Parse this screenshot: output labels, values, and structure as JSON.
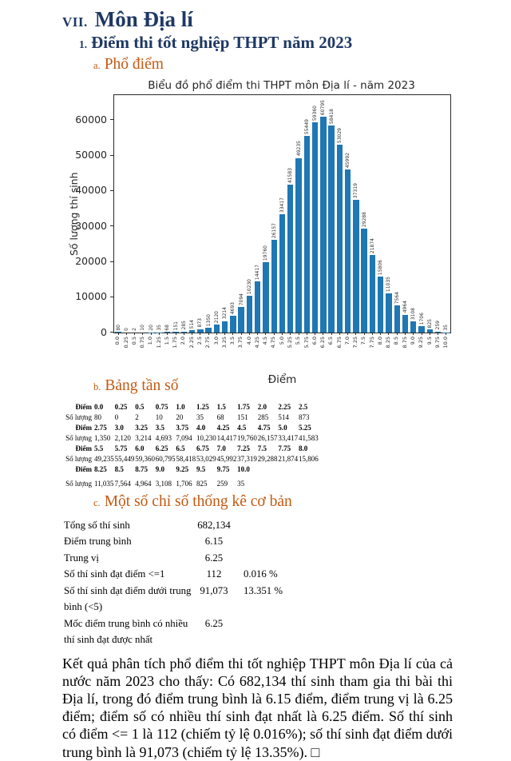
{
  "document": {
    "h1_num": "VII.",
    "h1": "Môn Địa lí",
    "h2_num": "1.",
    "h2": "Điểm thi tốt nghiệp THPT năm 2023",
    "sec_a_num": "a.",
    "sec_a": "Phổ điểm",
    "sec_b_num": "b.",
    "sec_b": "Bảng tần số",
    "sec_c_num": "c.",
    "sec_c": "Một số chỉ số thống kê cơ bản",
    "analysis": "Kết quả phân tích phổ điểm thi tốt nghiệp THPT môn Địa lí của cả nước năm 2023 cho thấy: Có 682,134 thí sinh tham gia thi bài thi Địa lí, trong đó điểm trung bình là 6.15 điểm, điểm trung vị là 6.25 điểm; điểm số có nhiều thí sinh đạt nhất là 6.25 điểm. Số thí sinh có điểm <= 1 là 112 (chiếm tỷ lệ 0.016%); số thí sinh đạt điểm dưới trung bình là 91,073 (chiếm tỷ lệ 13.35%). □"
  },
  "colors": {
    "heading_navy": "#1f3864",
    "section_orange": "#c45911",
    "bar_blue": "#1f77b4"
  },
  "chart_data": {
    "type": "bar",
    "title": "Biểu đồ phổ điểm thi THPT môn Địa lí - năm 2023",
    "xlabel": "Điểm",
    "ylabel": "Số lượng thí sinh",
    "categories": [
      "0.0",
      "0.25",
      "0.5",
      "0.75",
      "1.0",
      "1.25",
      "1.5",
      "1.75",
      "2.0",
      "2.25",
      "2.5",
      "2.75",
      "3.0",
      "3.25",
      "3.5",
      "3.75",
      "4.0",
      "4.25",
      "4.5",
      "4.75",
      "5.0",
      "5.25",
      "5.5",
      "5.75",
      "6.0",
      "6.25",
      "6.5",
      "6.75",
      "7.0",
      "7.25",
      "7.5",
      "7.75",
      "8.0",
      "8.25",
      "8.5",
      "8.75",
      "9.0",
      "9.25",
      "9.5",
      "9.75",
      "10.0"
    ],
    "values": [
      80,
      0,
      2,
      10,
      20,
      35,
      68,
      151,
      285,
      514,
      873,
      1350,
      2120,
      3214,
      4693,
      7094,
      10230,
      14417,
      19760,
      26157,
      33417,
      41583,
      49235,
      55449,
      59360,
      60795,
      58418,
      53029,
      45992,
      37319,
      29288,
      21874,
      15806,
      11035,
      7564,
      4964,
      3108,
      1706,
      825,
      259,
      35
    ],
    "yticks": [
      0,
      10000,
      20000,
      30000,
      40000,
      50000,
      60000
    ],
    "ylim": [
      0,
      67000
    ],
    "grid": false,
    "legend": "none",
    "bar_color": "#1f77b4"
  },
  "freq_table": {
    "rows": [
      {
        "label": "Điểm",
        "bold": true,
        "gap": false,
        "cells": [
          "0.0",
          "0.25",
          "0.5",
          "0.75",
          "1.0",
          "1.25",
          "1.5",
          "1.75",
          "2.0",
          "2.25",
          "2.5"
        ]
      },
      {
        "label": "Số lượng",
        "bold": false,
        "gap": false,
        "cells": [
          "80",
          "0",
          "2",
          "10",
          "20",
          "35",
          "68",
          "151",
          "285",
          "514",
          "873"
        ]
      },
      {
        "label": "Điểm",
        "bold": true,
        "gap": false,
        "cells": [
          "2.75",
          "3.0",
          "3.25",
          "3.5",
          "3.75",
          "4.0",
          "4.25",
          "4.5",
          "4.75",
          "5.0",
          "5.25"
        ]
      },
      {
        "label": "Số lượng",
        "bold": false,
        "gap": false,
        "cells": [
          "1,350",
          "2,120",
          "3,214",
          "4,693",
          "7,094",
          "10,230",
          "14,417",
          "19,760",
          "26,157",
          "33,417",
          "41,583"
        ]
      },
      {
        "label": "Điểm",
        "bold": true,
        "gap": false,
        "cells": [
          "5.5",
          "5.75",
          "6.0",
          "6.25",
          "6.5",
          "6.75",
          "7.0",
          "7.25",
          "7.5",
          "7.75",
          "8.0"
        ]
      },
      {
        "label": "Số lượng",
        "bold": false,
        "gap": false,
        "cells": [
          "49,235",
          "55,449",
          "59,360",
          "60,795",
          "58,418",
          "53,029",
          "45,992",
          "37,319",
          "29,288",
          "21,874",
          "15,806"
        ]
      },
      {
        "label": "Điểm",
        "bold": true,
        "gap": false,
        "cells": [
          "8.25",
          "8.5",
          "8.75",
          "9.0",
          "9.25",
          "9.5",
          "9.75",
          "10.0"
        ]
      },
      {
        "label": "Số lượng",
        "bold": false,
        "gap": true,
        "cells": [
          "11,035",
          "7,564",
          "4,964",
          "3,108",
          "1,706",
          "825",
          "259",
          "35"
        ]
      }
    ]
  },
  "stats": {
    "rows": [
      {
        "label": "Tổng số thí sinh",
        "label2": "",
        "value": "682,134",
        "pct": ""
      },
      {
        "label": "Điểm trung bình",
        "label2": "",
        "value": "6.15",
        "pct": ""
      },
      {
        "label": "Trung vị",
        "label2": "",
        "value": "6.25",
        "pct": ""
      },
      {
        "label": "Số thí sinh đạt điểm <=1",
        "label2": "",
        "value": "112",
        "pct": "0.016 %"
      },
      {
        "label": "Số thí sinh đạt điểm dưới trung",
        "label2": "bình (<5)",
        "value": "91,073",
        "pct": "13.351 %"
      },
      {
        "label": "Mốc điểm trung bình có nhiều",
        "label2": "thí sinh đạt được nhất",
        "value": "6.25",
        "pct": ""
      }
    ]
  }
}
